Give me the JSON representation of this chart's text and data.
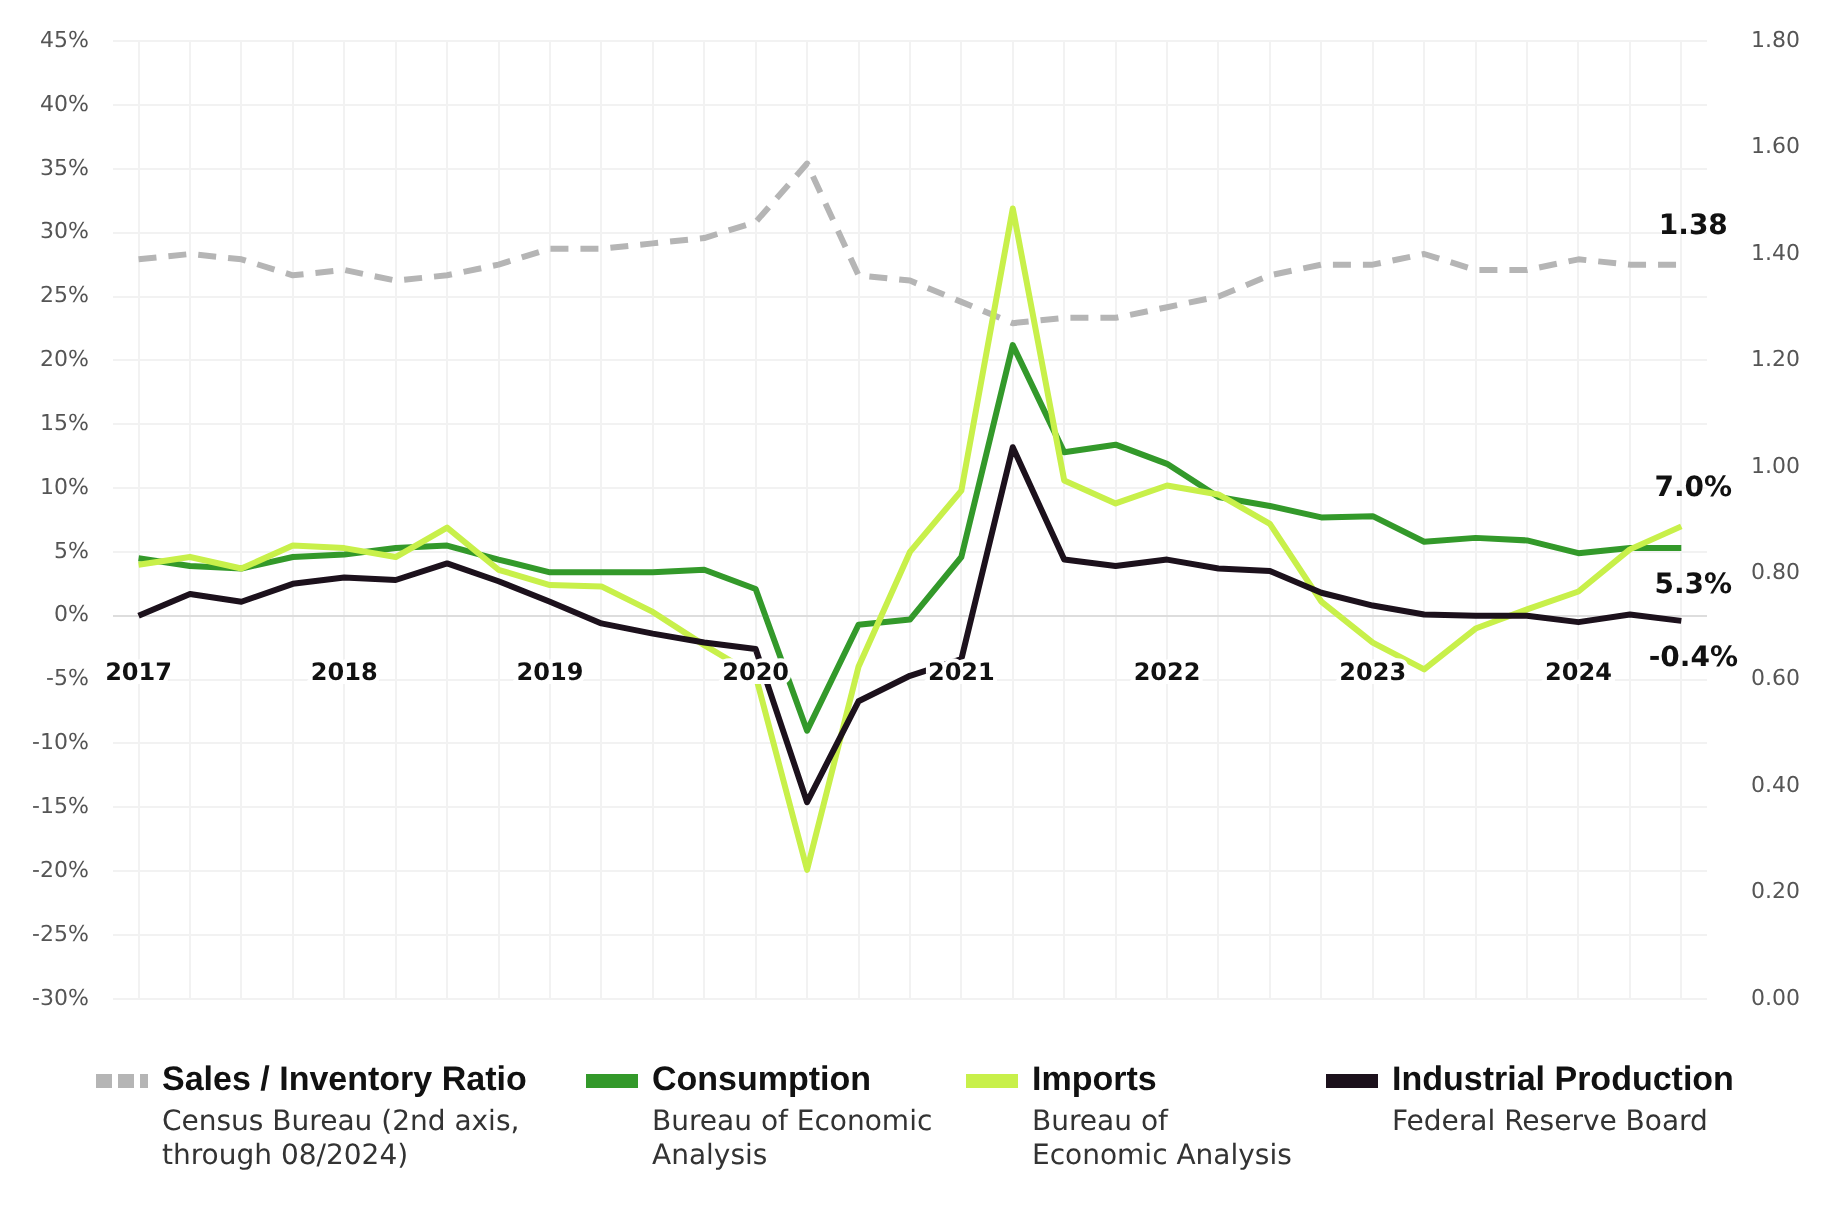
{
  "chart_data": {
    "type": "line",
    "categories": [
      "2017",
      null,
      null,
      null,
      "2018",
      null,
      null,
      null,
      "2019",
      null,
      null,
      null,
      "2020",
      null,
      null,
      null,
      "2021",
      null,
      null,
      null,
      "2022",
      null,
      null,
      null,
      "2023",
      null,
      null,
      null,
      "2024",
      null,
      null
    ],
    "series": [
      {
        "name": "Sales / Inventory Ratio",
        "color": "#b5b5b5",
        "axis": "y2",
        "line_style": "dashed",
        "values": [
          1.39,
          1.4,
          1.39,
          1.36,
          1.37,
          1.35,
          1.36,
          1.38,
          1.41,
          1.41,
          1.42,
          1.43,
          1.46,
          1.57,
          1.36,
          1.35,
          1.31,
          1.27,
          1.28,
          1.28,
          1.3,
          1.32,
          1.36,
          1.38,
          1.38,
          1.4,
          1.37,
          1.37,
          1.39,
          1.38,
          1.38
        ],
        "value_labels": [
          null,
          null,
          null,
          null,
          null,
          null,
          null,
          null,
          null,
          null,
          null,
          null,
          null,
          null,
          null,
          null,
          null,
          null,
          null,
          null,
          null,
          null,
          null,
          null,
          null,
          null,
          null,
          null,
          null,
          null,
          "1.38"
        ]
      },
      {
        "name": "Consumption",
        "color": "#33992a",
        "values": [
          4.5,
          3.9,
          3.7,
          4.6,
          4.8,
          5.3,
          5.5,
          4.4,
          3.4,
          3.4,
          3.4,
          3.6,
          2.1,
          -9.0,
          -0.7,
          -0.3,
          4.6,
          21.2,
          12.8,
          13.4,
          11.9,
          9.3,
          8.6,
          7.7,
          7.8,
          5.8,
          6.1,
          5.9,
          4.9,
          5.3,
          5.3
        ],
        "value_labels": [
          null,
          null,
          null,
          null,
          null,
          null,
          null,
          null,
          null,
          null,
          null,
          null,
          null,
          null,
          null,
          null,
          null,
          null,
          null,
          null,
          null,
          null,
          null,
          null,
          null,
          null,
          null,
          null,
          null,
          null,
          "5.3%"
        ]
      },
      {
        "name": "Imports",
        "color": "#c8f04a",
        "values": [
          4.0,
          4.6,
          3.7,
          5.5,
          5.3,
          4.6,
          6.9,
          3.6,
          2.4,
          2.3,
          0.3,
          -2.3,
          -4.7,
          -19.9,
          -4.0,
          5.0,
          9.8,
          31.9,
          10.6,
          8.8,
          10.2,
          9.5,
          7.2,
          1.1,
          -2.1,
          -4.2,
          -1.0,
          0.5,
          1.9,
          5.2,
          7.0
        ],
        "value_labels": [
          null,
          null,
          null,
          null,
          null,
          null,
          null,
          null,
          null,
          null,
          null,
          null,
          null,
          null,
          null,
          null,
          null,
          null,
          null,
          null,
          null,
          null,
          null,
          null,
          null,
          null,
          null,
          null,
          null,
          null,
          "7.0%"
        ]
      },
      {
        "name": "Industrial Production",
        "color": "#1c111c",
        "values": [
          0.0,
          1.7,
          1.1,
          2.5,
          3.0,
          2.8,
          4.1,
          2.7,
          1.1,
          -0.6,
          -1.4,
          -2.1,
          -2.6,
          -14.6,
          -6.7,
          -4.7,
          -3.4,
          13.2,
          4.4,
          3.9,
          4.4,
          3.7,
          3.5,
          1.8,
          0.8,
          0.1,
          0.0,
          0.0,
          -0.5,
          0.1,
          -0.4
        ],
        "value_labels": [
          null,
          null,
          null,
          null,
          null,
          null,
          null,
          null,
          null,
          null,
          null,
          null,
          null,
          null,
          null,
          null,
          null,
          null,
          null,
          null,
          null,
          null,
          null,
          null,
          null,
          null,
          null,
          null,
          null,
          null,
          "-0.4%"
        ]
      }
    ],
    "ylim": [
      -30,
      45
    ],
    "yticks": [
      {
        "value": -30,
        "label": "-30%"
      },
      {
        "value": -25,
        "label": "-25%"
      },
      {
        "value": -20,
        "label": "-20%"
      },
      {
        "value": -15,
        "label": "-15%"
      },
      {
        "value": -10,
        "label": "-10%"
      },
      {
        "value": -5,
        "label": "-5%"
      },
      {
        "value": 0,
        "label": "0%"
      },
      {
        "value": 5,
        "label": "5%"
      },
      {
        "value": 10,
        "label": "10%"
      },
      {
        "value": 15,
        "label": "15%"
      },
      {
        "value": 20,
        "label": "20%"
      },
      {
        "value": 25,
        "label": "25%"
      },
      {
        "value": 30,
        "label": "30%"
      },
      {
        "value": 35,
        "label": "35%"
      },
      {
        "value": 40,
        "label": "40%"
      },
      {
        "value": 45,
        "label": "45%"
      }
    ],
    "y2lim": [
      0,
      1.8
    ],
    "y2ticks": [
      {
        "value": 0,
        "label": "0.00"
      },
      {
        "value": 0.2,
        "label": "0.20"
      },
      {
        "value": 0.4,
        "label": "0.40"
      },
      {
        "value": 0.6,
        "label": "0.60"
      },
      {
        "value": 0.8,
        "label": "0.80"
      },
      {
        "value": 1,
        "label": "1.00"
      },
      {
        "value": 1.2,
        "label": "1.20"
      },
      {
        "value": 1.4,
        "label": "1.40"
      },
      {
        "value": 1.6,
        "label": "1.60"
      },
      {
        "value": 1.8,
        "label": "1.80"
      }
    ],
    "annotations": [
      "Census Bureau (2nd axis, through 08/2024)",
      "Bureau of Economic Analysis",
      "Bureau of Economic Analysis",
      "Federal Reserve Board"
    ],
    "grid": true,
    "legend": "bottom",
    "marker": "none",
    "line_style": "solid"
  }
}
